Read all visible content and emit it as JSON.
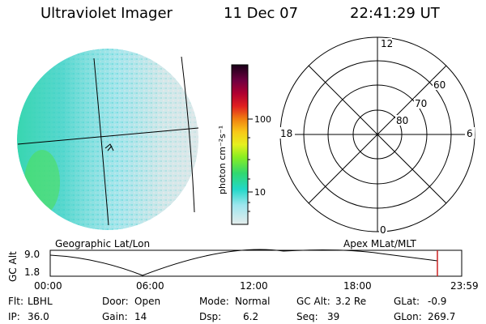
{
  "header": {
    "title": "Ultraviolet Imager",
    "date": "11 Dec 07",
    "time": "22:41:29 UT"
  },
  "colorbar": {
    "unit_label": "photon cm⁻²s⁻¹",
    "ticks": [
      "100",
      "10"
    ]
  },
  "polar_plot": {
    "mlt_labels": {
      "top": "12",
      "left": "18",
      "right": "6",
      "bottom": "0"
    },
    "lat_labels": [
      "60",
      "70",
      "80"
    ]
  },
  "orbit_panel": {
    "left_label": "Geographic Lat/Lon",
    "right_label": "Apex MLat/MLT",
    "axis_title": "GC Alt",
    "y_ticks": [
      "9.0",
      "1.8"
    ],
    "x_ticks": [
      "00:00",
      "06:00",
      "12:00",
      "18:00",
      "23:59"
    ],
    "marker_color": "#cc2222"
  },
  "info": {
    "row1": [
      {
        "key": "Flt:",
        "value": "LBHL"
      },
      {
        "key": "Door:",
        "value": "Open"
      },
      {
        "key": "Mode:",
        "value": "Normal"
      },
      {
        "key": "GC Alt:",
        "value": "3.2 Re"
      },
      {
        "key": "GLat:",
        "value": "-0.9"
      }
    ],
    "row2": [
      {
        "key": "IP:",
        "value": "36.0"
      },
      {
        "key": "Gain:",
        "value": "14"
      },
      {
        "key": "Dsp:",
        "value": "6.2"
      },
      {
        "key": "Seq:",
        "value": "39"
      },
      {
        "key": "GLon:",
        "value": "269.7"
      }
    ]
  }
}
